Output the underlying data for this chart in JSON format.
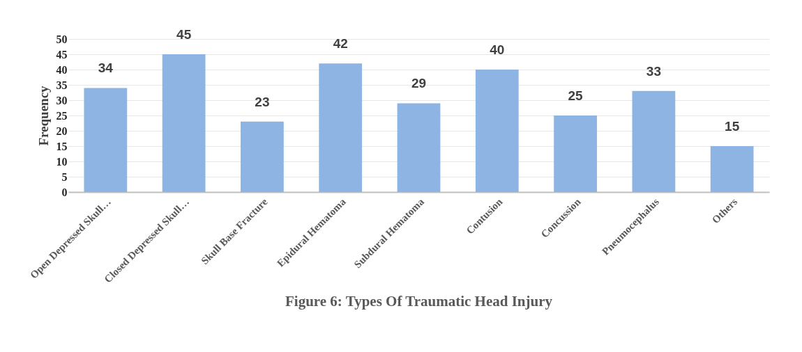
{
  "chart_data": {
    "type": "bar",
    "title": "Figure 6: Types Of Traumatic Head Injury",
    "ylabel": "Frequency",
    "categories": [
      "Open Depressed Skull…",
      "Closed Depressed Skull…",
      "Skull Base Fracture",
      "Epidural Hematoma",
      "Subdural Hematoma",
      "Contusion",
      "Concussion",
      "Pneumocephalus",
      "Others"
    ],
    "values": [
      34,
      45,
      23,
      42,
      29,
      40,
      25,
      33,
      15
    ],
    "color": "#8db4e2",
    "ylim": [
      0,
      50
    ],
    "yticks": [
      0,
      5,
      10,
      15,
      20,
      25,
      30,
      35,
      40,
      45,
      50
    ],
    "grid": "y",
    "data_labels": true
  }
}
